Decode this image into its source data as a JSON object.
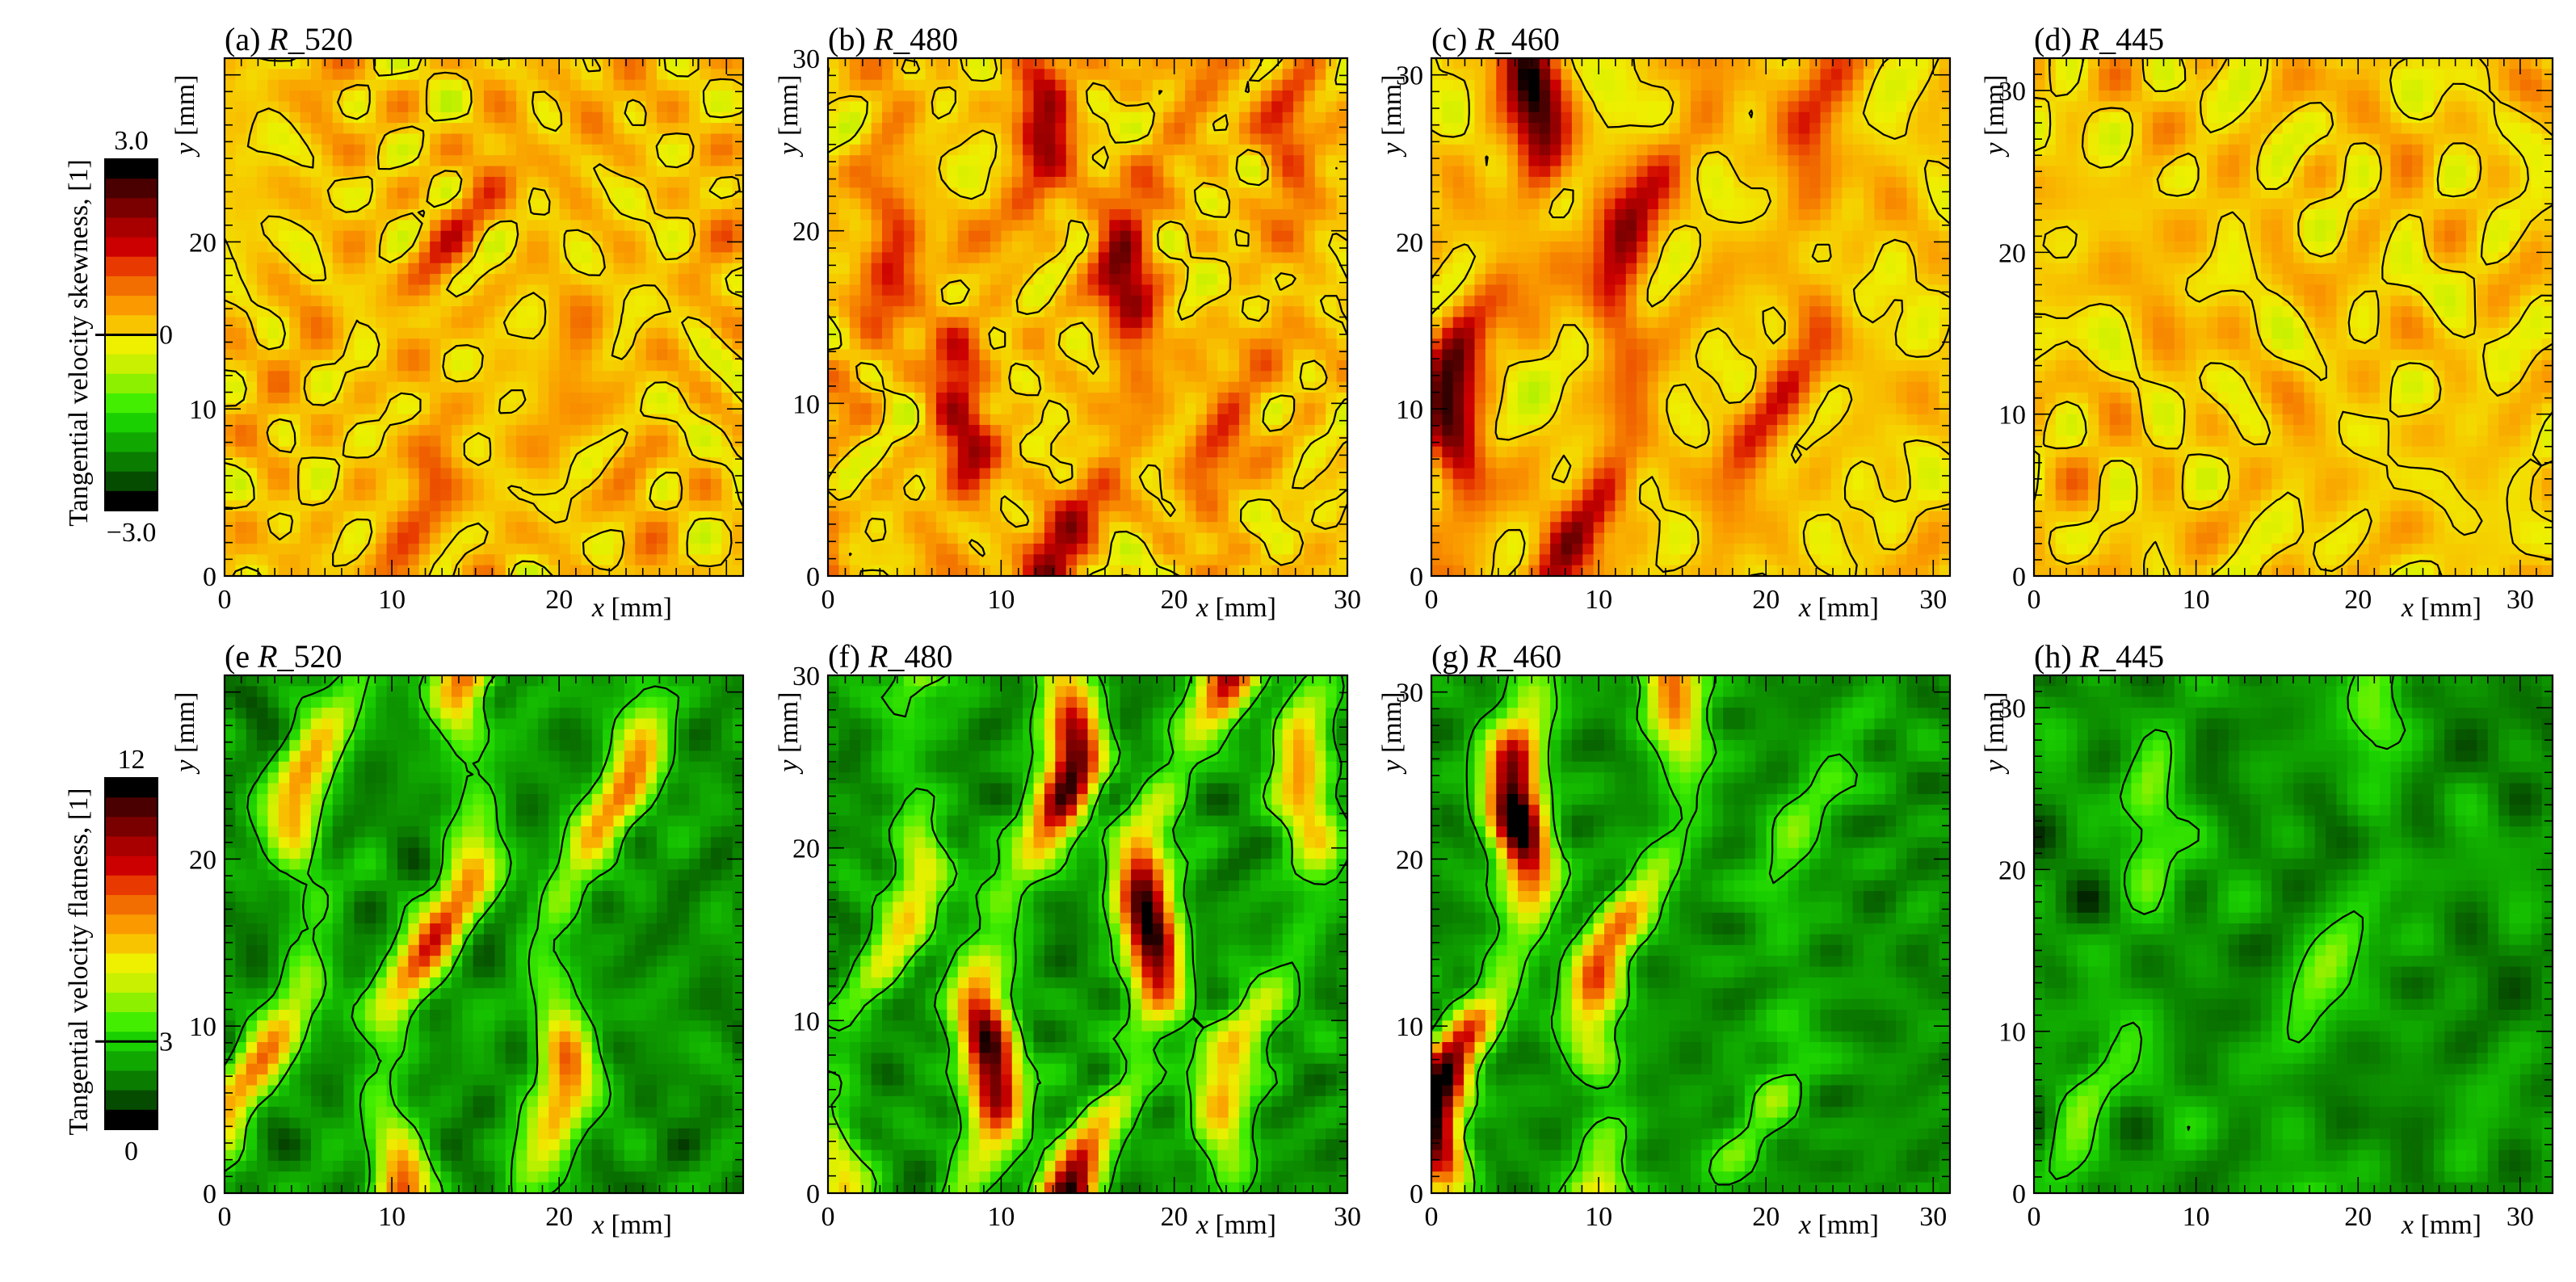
{
  "chart_data": {
    "type": "heatmap",
    "colorbars": [
      {
        "label": "Tangential velocity skewness, [1]",
        "ticks": [
          "3.0",
          "0",
          "−3.0"
        ],
        "range": [
          -3.0,
          3.0
        ],
        "reference_value": 0,
        "colors": [
          "#000000",
          "#4a0000",
          "#7a0000",
          "#a80000",
          "#cc0000",
          "#e83a00",
          "#f26e00",
          "#fa9a00",
          "#f8c400",
          "#eef000",
          "#c8f000",
          "#8cf000",
          "#44ee00",
          "#1ad000",
          "#10a800",
          "#0a7c00",
          "#064c00",
          "#000000"
        ]
      },
      {
        "label": "Tangential velocity flatness, [1]",
        "ticks": [
          "12",
          "3",
          "0"
        ],
        "range": [
          0,
          12
        ],
        "reference_value": 3,
        "colors": [
          "#000000",
          "#4a0000",
          "#7a0000",
          "#a80000",
          "#cc0000",
          "#e83a00",
          "#f26e00",
          "#fa9a00",
          "#f8c400",
          "#eef000",
          "#c8f000",
          "#8cf000",
          "#44ee00",
          "#1ad000",
          "#10a800",
          "#0a7c00",
          "#064c00",
          "#000000"
        ]
      }
    ],
    "panels": [
      {
        "label": "(a)",
        "name": "R_520",
        "quantity": "skewness",
        "xlabel": "x [mm]",
        "ylabel": "y [mm]",
        "xlim": [
          0,
          31
        ],
        "ylim": [
          0,
          31
        ],
        "xticks": [
          "0",
          "10",
          "20"
        ],
        "yticks": [
          "0",
          "10",
          "20"
        ],
        "seed": 11,
        "stripes": [
          {
            "pos": 0.15,
            "val": 0.4
          },
          {
            "pos": 0.42,
            "val": 0.9
          },
          {
            "pos": 0.66,
            "val": 0.5
          },
          {
            "pos": 0.9,
            "val": 0.4
          }
        ]
      },
      {
        "label": "(b)",
        "name": "R_480",
        "quantity": "skewness",
        "xlabel": "x [mm]",
        "ylabel": "y [mm]",
        "xlim": [
          0,
          30
        ],
        "ylim": [
          0,
          30
        ],
        "xticks": [
          "0",
          "10",
          "20",
          "30"
        ],
        "yticks": [
          "0",
          "10",
          "20",
          "30"
        ],
        "seed": 23,
        "stripes": [
          {
            "pos": 0.05,
            "val": 1.3
          },
          {
            "pos": 0.3,
            "val": 1.7
          },
          {
            "pos": 0.58,
            "val": 1.9
          },
          {
            "pos": 0.85,
            "val": 1.1
          }
        ]
      },
      {
        "label": "(c)",
        "name": "R_460",
        "quantity": "skewness",
        "xlabel": "x [mm]",
        "ylabel": "y [mm]",
        "xlim": [
          0,
          31
        ],
        "ylim": [
          0,
          31
        ],
        "xticks": [
          "0",
          "10",
          "20",
          "30"
        ],
        "yticks": [
          "0",
          "10",
          "20",
          "30"
        ],
        "seed": 37,
        "stripes": [
          {
            "pos": 0.1,
            "val": 2.4
          },
          {
            "pos": 0.38,
            "val": 1.9
          },
          {
            "pos": 0.7,
            "val": 1.2
          }
        ]
      },
      {
        "label": "(d)",
        "name": "R_445",
        "quantity": "skewness",
        "xlabel": "x [mm]",
        "ylabel": "y [mm]",
        "xlim": [
          0,
          32
        ],
        "ylim": [
          0,
          32
        ],
        "xticks": [
          "0",
          "10",
          "20",
          "30"
        ],
        "yticks": [
          "0",
          "10",
          "20",
          "30"
        ],
        "seed": 41,
        "stripes": [
          {
            "pos": 0.2,
            "val": 0.3
          },
          {
            "pos": 0.6,
            "val": 0.2
          }
        ]
      },
      {
        "label": "(e",
        "name": "R_520",
        "quantity": "flatness",
        "xlabel": "x [mm]",
        "ylabel": "y [mm]",
        "xlim": [
          0,
          31
        ],
        "ylim": [
          0,
          31
        ],
        "xticks": [
          "0",
          "10",
          "20"
        ],
        "yticks": [
          "0",
          "10",
          "20"
        ],
        "seed": 53,
        "stripes": [
          {
            "pos": 0.12,
            "val": 5.0
          },
          {
            "pos": 0.4,
            "val": 6.5
          },
          {
            "pos": 0.68,
            "val": 5.5
          }
        ]
      },
      {
        "label": "(f)",
        "name": "R_480",
        "quantity": "flatness",
        "xlabel": "x [mm]",
        "ylabel": "y [mm]",
        "xlim": [
          0,
          30
        ],
        "ylim": [
          0,
          30
        ],
        "xticks": [
          "0",
          "10",
          "20",
          "30"
        ],
        "yticks": [
          "0",
          "10",
          "20",
          "30"
        ],
        "seed": 67,
        "stripes": [
          {
            "pos": 0.1,
            "val": 4.0
          },
          {
            "pos": 0.35,
            "val": 9.0
          },
          {
            "pos": 0.62,
            "val": 9.5
          },
          {
            "pos": 0.88,
            "val": 5.0
          }
        ]
      },
      {
        "label": "(g)",
        "name": "R_460",
        "quantity": "flatness",
        "xlabel": "x [mm]",
        "ylabel": "y [mm]",
        "xlim": [
          0,
          31
        ],
        "ylim": [
          0,
          31
        ],
        "xticks": [
          "0",
          "10",
          "20",
          "30"
        ],
        "yticks": [
          "0",
          "10",
          "20",
          "30"
        ],
        "seed": 79,
        "stripes": [
          {
            "pos": 0.12,
            "val": 10.0
          },
          {
            "pos": 0.38,
            "val": 6.0
          },
          {
            "pos": 0.7,
            "val": 2.0
          }
        ]
      },
      {
        "label": "(h)",
        "name": "R_445",
        "quantity": "flatness",
        "xlabel": "x [mm]",
        "ylabel": "y [mm]",
        "xlim": [
          0,
          32
        ],
        "ylim": [
          0,
          32
        ],
        "xticks": [
          "0",
          "10",
          "20",
          "30"
        ],
        "yticks": [
          "0",
          "10",
          "20",
          "30"
        ],
        "seed": 97,
        "stripes": [
          {
            "pos": 0.2,
            "val": 2.2
          },
          {
            "pos": 0.6,
            "val": 2.0
          }
        ]
      }
    ]
  }
}
